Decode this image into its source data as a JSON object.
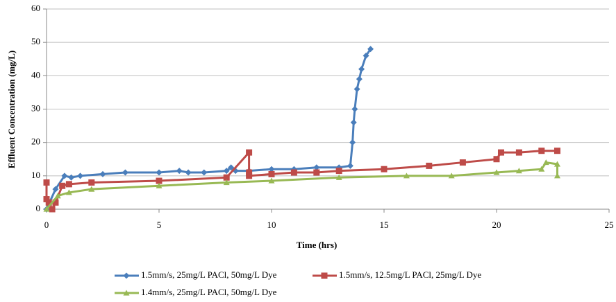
{
  "chart_data": {
    "type": "line",
    "x_label": "Time (hrs)",
    "y_label": "Effluent Concentration (mg/L)",
    "xlim": [
      0,
      25
    ],
    "xticks": [
      0,
      5,
      10,
      15,
      20,
      25
    ],
    "ylim": [
      0,
      60
    ],
    "yticks": [
      0,
      10,
      20,
      30,
      40,
      50,
      60
    ],
    "grid": true,
    "legend": "bottom",
    "series": [
      {
        "name": "1.5mm/s, 25mg/L PACl, 50mg/L Dye",
        "color": "#4a7ebb",
        "marker": "diamond",
        "x": [
          0,
          0.4,
          0.8,
          1.1,
          1.5,
          2.5,
          3.5,
          5,
          5.9,
          6.3,
          7,
          8,
          8.2,
          8.4,
          9,
          10,
          11,
          12,
          13,
          13.5,
          13.6,
          13.65,
          13.7,
          13.8,
          13.9,
          14,
          14.2,
          14.4
        ],
        "values": [
          0,
          6,
          10,
          9.5,
          10,
          10.5,
          11,
          11,
          11.5,
          11,
          11,
          11.5,
          12.5,
          11.5,
          11.5,
          12,
          12,
          12.5,
          12.5,
          13,
          20,
          26,
          30,
          36,
          39,
          42,
          46,
          48
        ]
      },
      {
        "name": "1.5mm/s, 12.5mg/L PACl, 25mg/L Dye",
        "color": "#be4b48",
        "marker": "square",
        "x": [
          0,
          0,
          0.1,
          0.25,
          0.4,
          0.7,
          1,
          2,
          5,
          8,
          9,
          9,
          9,
          10,
          11,
          12,
          13,
          15,
          17,
          18.5,
          20,
          20.2,
          21,
          22,
          22.7
        ],
        "values": [
          8,
          3,
          2,
          0,
          2,
          7,
          7.5,
          8,
          8.5,
          9.5,
          17,
          11,
          10,
          10.5,
          11,
          11,
          11.5,
          12,
          13,
          14,
          15,
          17,
          17,
          17.5,
          17.5
        ]
      },
      {
        "name": "1.4mm/s, 25mg/L PACl, 50mg/L Dye",
        "color": "#98b954",
        "marker": "triangle",
        "x": [
          0,
          0.5,
          1,
          2,
          5,
          8,
          10,
          13,
          16,
          18,
          20,
          21,
          22,
          22.2,
          22.7,
          22.7
        ],
        "values": [
          0,
          4,
          5,
          6,
          7,
          8,
          8.5,
          9.5,
          10,
          10,
          11,
          11.5,
          12,
          14,
          13.5,
          10
        ]
      }
    ]
  }
}
